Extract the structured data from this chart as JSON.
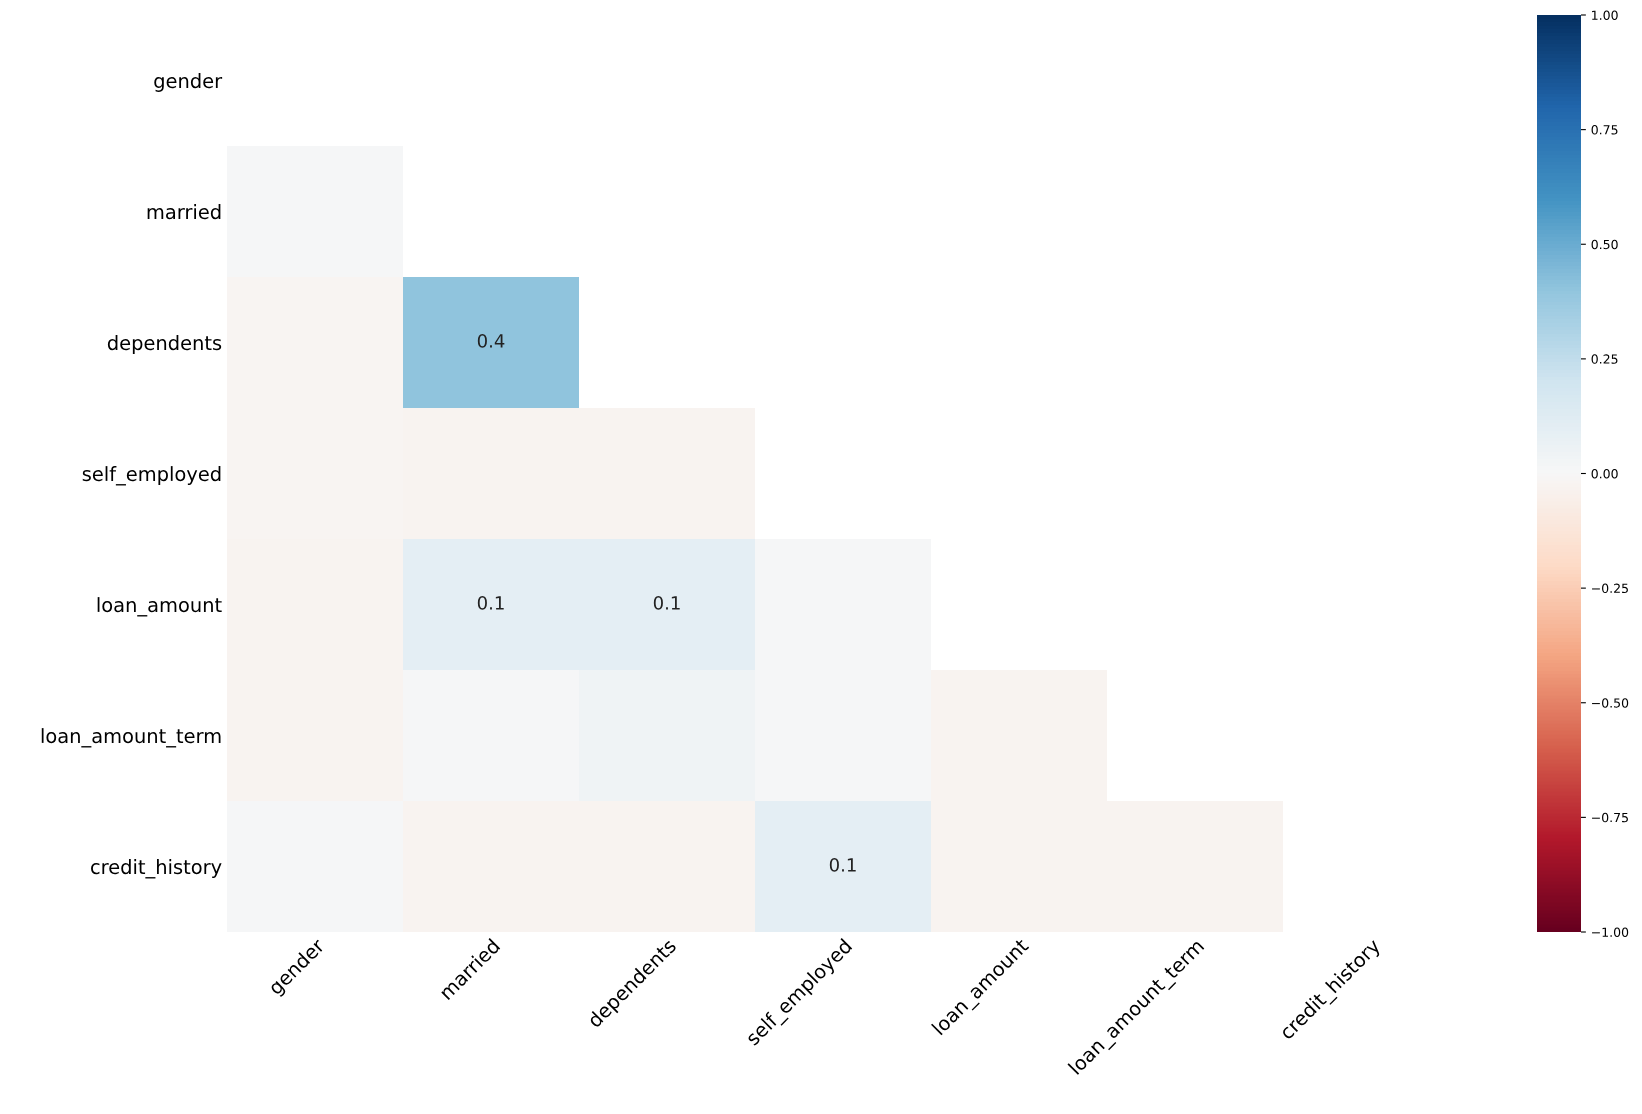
{
  "chart_data": {
    "type": "heatmap",
    "categories": [
      "gender",
      "married",
      "dependents",
      "self_employed",
      "loan_amount",
      "loan_amount_term",
      "credit_history"
    ],
    "y_categories": [
      "gender",
      "married",
      "dependents",
      "self_employed",
      "loan_amount",
      "loan_amount_term",
      "credit_history"
    ],
    "cells": [
      [
        null,
        null,
        null,
        null,
        null,
        null,
        null
      ],
      [
        0.01,
        null,
        null,
        null,
        null,
        null,
        null
      ],
      [
        -0.02,
        0.4,
        null,
        null,
        null,
        null,
        null
      ],
      [
        -0.02,
        -0.03,
        -0.03,
        null,
        null,
        null,
        null
      ],
      [
        -0.03,
        0.1,
        0.1,
        0.01,
        null,
        null,
        null
      ],
      [
        -0.03,
        0.01,
        0.04,
        0.01,
        -0.03,
        null,
        null
      ],
      [
        0.01,
        -0.03,
        -0.03,
        0.1,
        -0.03,
        -0.03,
        null
      ]
    ],
    "cell_labels": [
      [
        null,
        null,
        null,
        null,
        null,
        null,
        null
      ],
      [
        null,
        null,
        null,
        null,
        null,
        null,
        null
      ],
      [
        null,
        "0.4",
        null,
        null,
        null,
        null,
        null
      ],
      [
        null,
        null,
        null,
        null,
        null,
        null,
        null
      ],
      [
        null,
        "0.1",
        "0.1",
        null,
        null,
        null,
        null
      ],
      [
        null,
        null,
        null,
        null,
        null,
        null,
        null
      ],
      [
        null,
        null,
        null,
        "0.1",
        null,
        null,
        null
      ]
    ],
    "clim": [
      -1,
      1
    ],
    "cticks": [
      {
        "value": -1,
        "label": "−1.00"
      },
      {
        "value": -0.75,
        "label": "−0.75"
      },
      {
        "value": -0.5,
        "label": "−0.50"
      },
      {
        "value": -0.25,
        "label": "−0.25"
      },
      {
        "value": 0,
        "label": "0.00"
      },
      {
        "value": 0.25,
        "label": "0.25"
      },
      {
        "value": 0.5,
        "label": "0.50"
      },
      {
        "value": 0.75,
        "label": "0.75"
      },
      {
        "value": 1,
        "label": "1.00"
      }
    ]
  }
}
